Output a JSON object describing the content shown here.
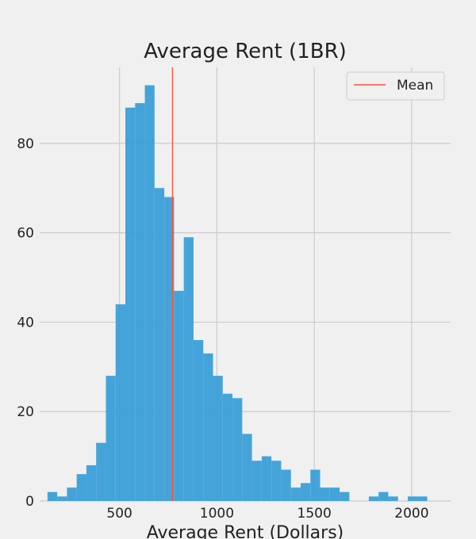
{
  "chart_data": {
    "type": "bar",
    "title": "Average Rent (1BR)",
    "xlabel": "Average Rent (Dollars)",
    "ylabel": "",
    "xlim": [
      90,
      2200
    ],
    "ylim": [
      0,
      97
    ],
    "xticks": [
      500,
      1000,
      1500,
      2000
    ],
    "yticks": [
      0,
      20,
      40,
      60,
      80
    ],
    "grid": true,
    "legend_position": "top-right",
    "bin_width": 50,
    "bins": [
      {
        "x0": 130,
        "x1": 180,
        "count": 2
      },
      {
        "x0": 180,
        "x1": 230,
        "count": 1
      },
      {
        "x0": 230,
        "x1": 280,
        "count": 3
      },
      {
        "x0": 280,
        "x1": 330,
        "count": 6
      },
      {
        "x0": 330,
        "x1": 380,
        "count": 8
      },
      {
        "x0": 380,
        "x1": 430,
        "count": 13
      },
      {
        "x0": 430,
        "x1": 480,
        "count": 28
      },
      {
        "x0": 480,
        "x1": 530,
        "count": 44
      },
      {
        "x0": 530,
        "x1": 580,
        "count": 88
      },
      {
        "x0": 580,
        "x1": 630,
        "count": 89
      },
      {
        "x0": 630,
        "x1": 680,
        "count": 93
      },
      {
        "x0": 680,
        "x1": 730,
        "count": 70
      },
      {
        "x0": 730,
        "x1": 780,
        "count": 68
      },
      {
        "x0": 780,
        "x1": 830,
        "count": 47
      },
      {
        "x0": 830,
        "x1": 880,
        "count": 59
      },
      {
        "x0": 880,
        "x1": 930,
        "count": 36
      },
      {
        "x0": 930,
        "x1": 980,
        "count": 33
      },
      {
        "x0": 980,
        "x1": 1030,
        "count": 28
      },
      {
        "x0": 1030,
        "x1": 1080,
        "count": 24
      },
      {
        "x0": 1080,
        "x1": 1130,
        "count": 23
      },
      {
        "x0": 1130,
        "x1": 1180,
        "count": 15
      },
      {
        "x0": 1180,
        "x1": 1230,
        "count": 9
      },
      {
        "x0": 1230,
        "x1": 1280,
        "count": 10
      },
      {
        "x0": 1280,
        "x1": 1330,
        "count": 9
      },
      {
        "x0": 1330,
        "x1": 1380,
        "count": 7
      },
      {
        "x0": 1380,
        "x1": 1430,
        "count": 3
      },
      {
        "x0": 1430,
        "x1": 1480,
        "count": 4
      },
      {
        "x0": 1480,
        "x1": 1530,
        "count": 7
      },
      {
        "x0": 1530,
        "x1": 1580,
        "count": 3
      },
      {
        "x0": 1580,
        "x1": 1630,
        "count": 3
      },
      {
        "x0": 1630,
        "x1": 1680,
        "count": 2
      },
      {
        "x0": 1680,
        "x1": 1730,
        "count": 0
      },
      {
        "x0": 1730,
        "x1": 1780,
        "count": 0
      },
      {
        "x0": 1780,
        "x1": 1830,
        "count": 1
      },
      {
        "x0": 1830,
        "x1": 1880,
        "count": 2
      },
      {
        "x0": 1880,
        "x1": 1930,
        "count": 1
      },
      {
        "x0": 1930,
        "x1": 1980,
        "count": 0
      },
      {
        "x0": 1980,
        "x1": 2030,
        "count": 1
      },
      {
        "x0": 2030,
        "x1": 2080,
        "count": 1
      }
    ],
    "mean": 772,
    "legend": [
      {
        "label": "Mean",
        "color": "#fc4f30"
      }
    ],
    "colors": {
      "bars": "#3a9fd8",
      "mean_line": "#fc4f30",
      "grid": "#cbcbcb",
      "background": "#f0f0f0"
    }
  }
}
